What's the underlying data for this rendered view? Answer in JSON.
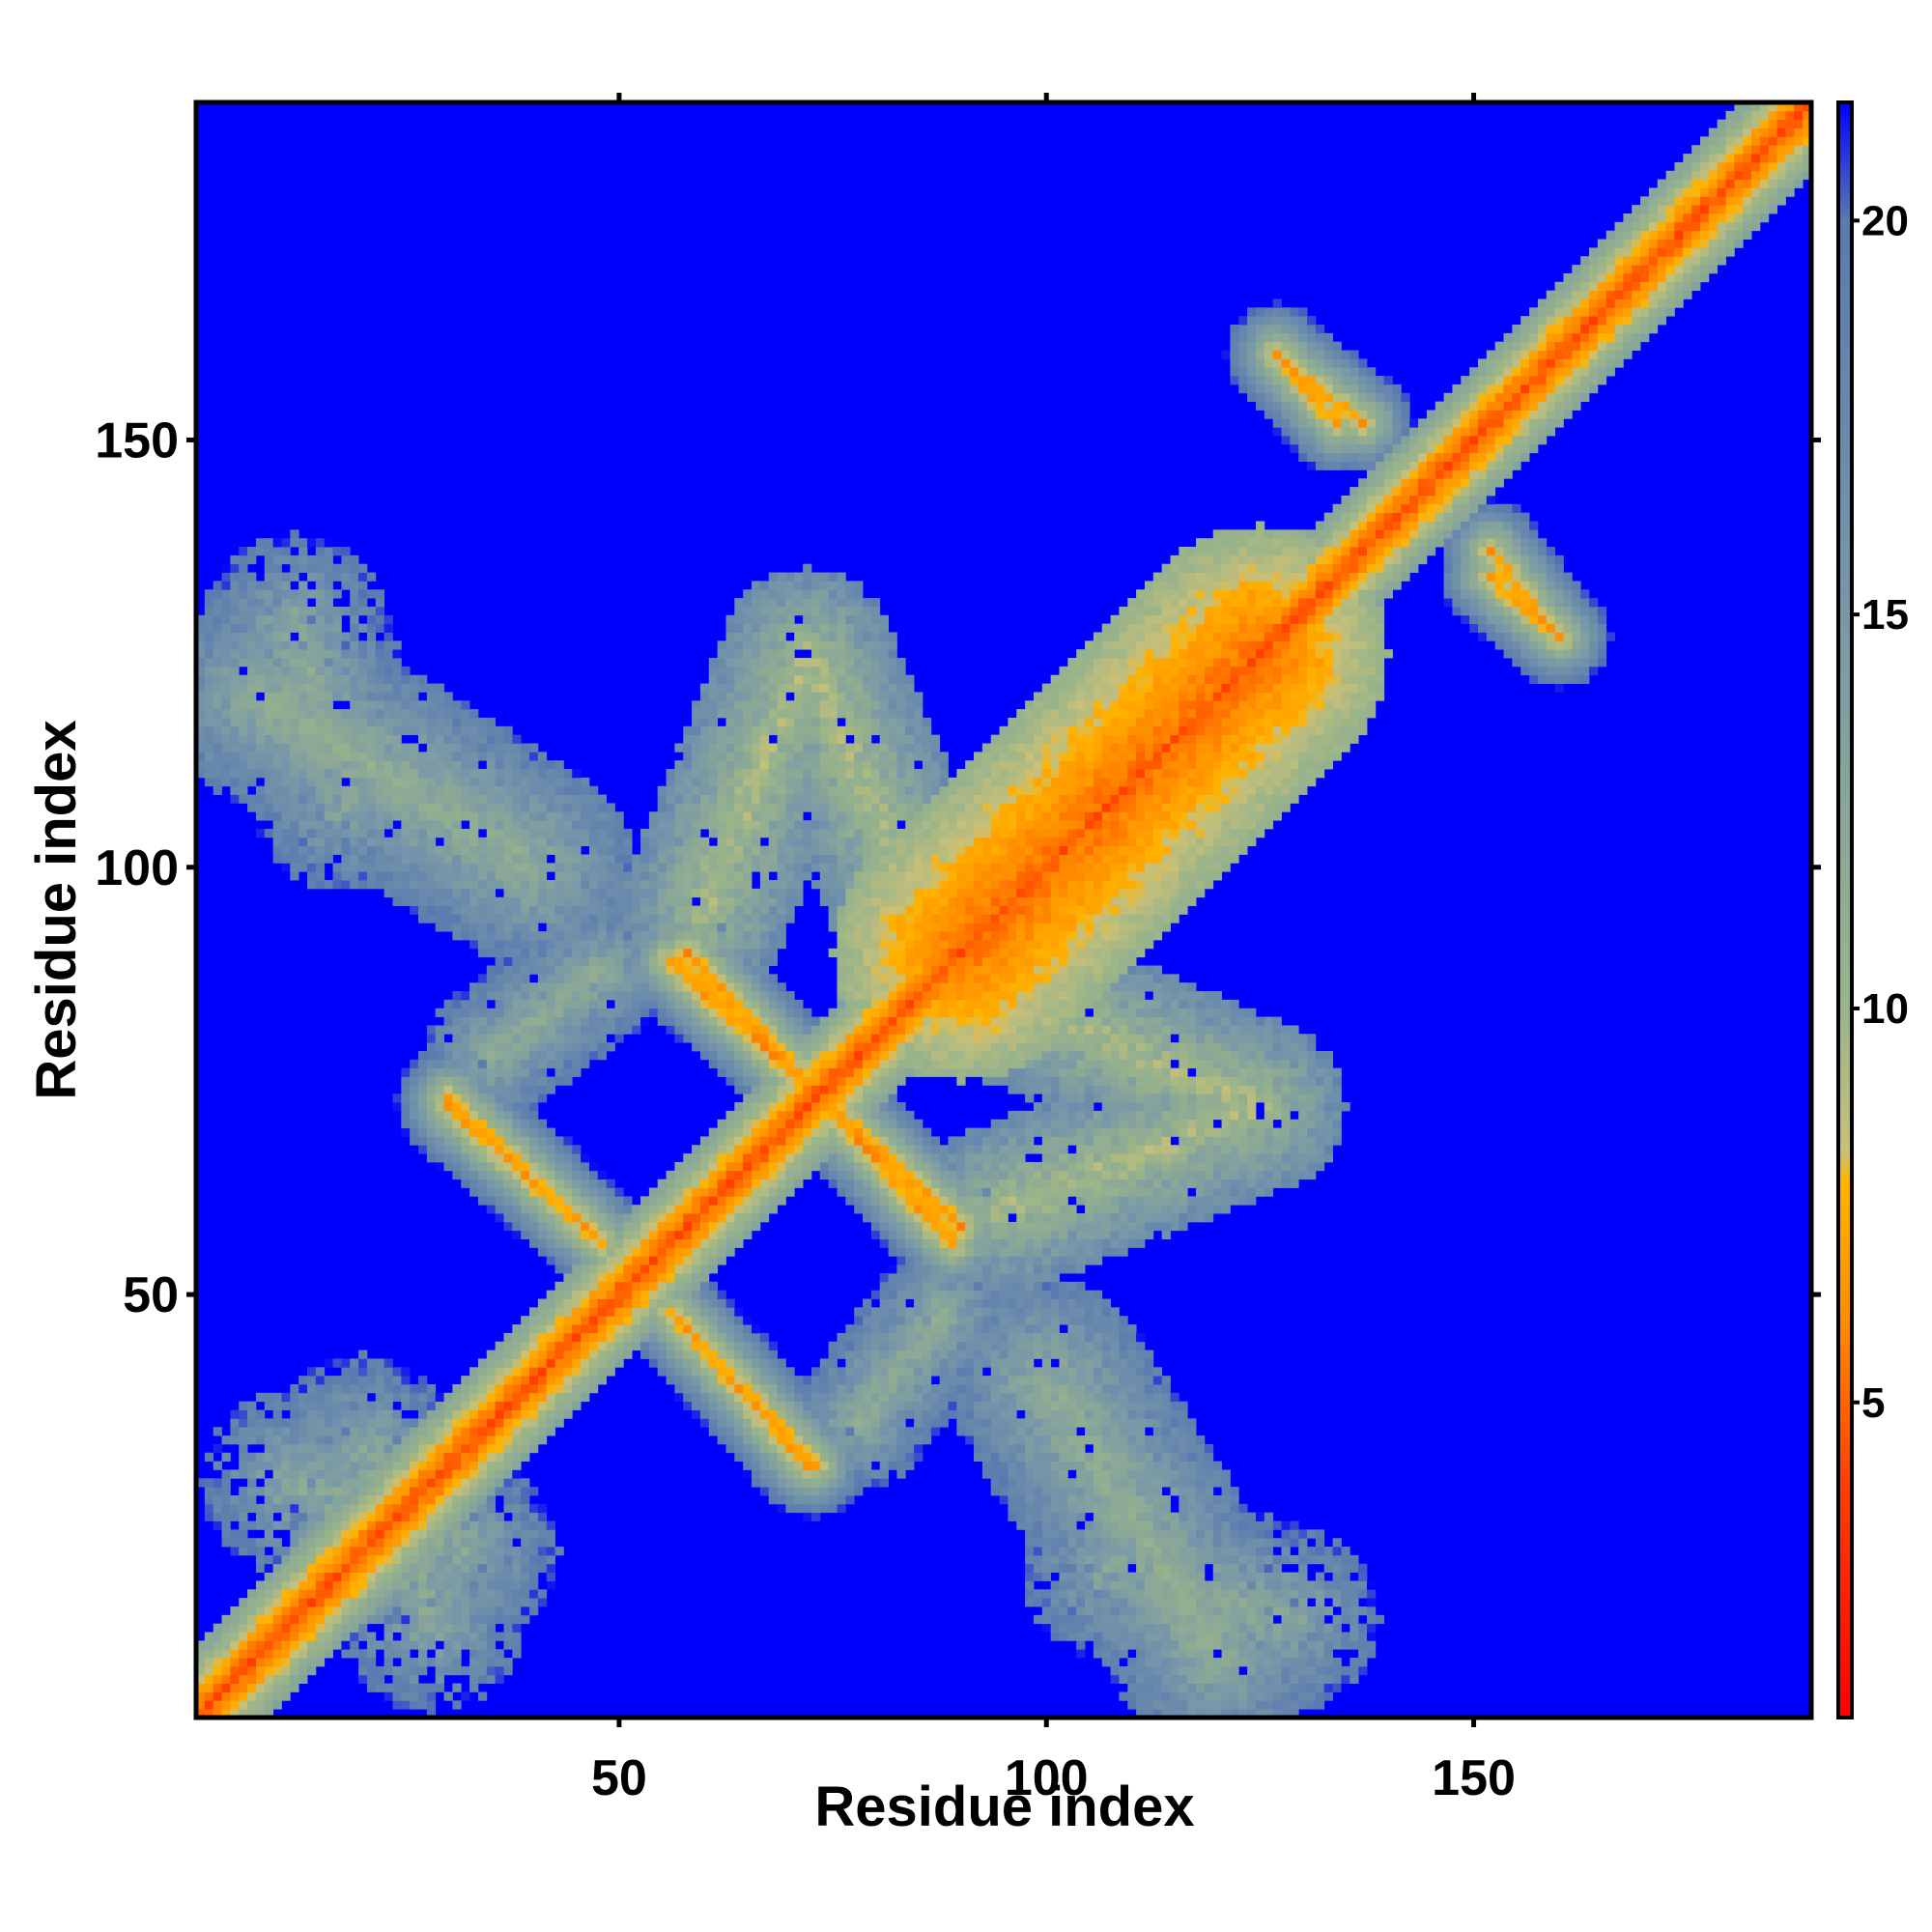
{
  "chart_data": {
    "type": "heatmap",
    "title": "",
    "xlabel": "Residue index",
    "ylabel": "Residue index",
    "n_residues": 189,
    "xlim": [
      1,
      189
    ],
    "ylim": [
      1,
      189
    ],
    "x_ticks": [
      50,
      100,
      150
    ],
    "y_ticks": [
      50,
      100,
      150
    ],
    "x_tick_labels": [
      "50",
      "100",
      "150"
    ],
    "y_tick_labels": [
      "50",
      "100",
      "150"
    ],
    "colorbar": {
      "range": [
        1,
        21.5
      ],
      "ticks": [
        5,
        10,
        15,
        20
      ],
      "tick_labels": [
        "5",
        "10",
        "15",
        "20"
      ],
      "placement": "right"
    },
    "cutoff_value": 21.5,
    "colorscale": [
      {
        "value": 1,
        "color": "#ff0000"
      },
      {
        "value": 4,
        "color": "#ff4000"
      },
      {
        "value": 6,
        "color": "#ff8c00"
      },
      {
        "value": 7.8,
        "color": "#ffb300"
      },
      {
        "value": 8.2,
        "color": "#c8c078"
      },
      {
        "value": 10,
        "color": "#9ab48a"
      },
      {
        "value": 15,
        "color": "#7898a8"
      },
      {
        "value": 20,
        "color": "#5a7ab0"
      },
      {
        "value": 21.5,
        "color": "#0000ff"
      }
    ],
    "features": [
      {
        "kind": "diagonal_band",
        "from": [
          1,
          1
        ],
        "to": [
          189,
          189
        ],
        "min_value": 3.8,
        "width_residues": 3
      },
      {
        "kind": "diagonal_band",
        "from": [
          90,
          90
        ],
        "to": [
          125,
          125
        ],
        "min_value": 4.5,
        "width_residues": 12
      },
      {
        "kind": "antiparallel_strand",
        "from": [
          30,
          73
        ],
        "to": [
          48,
          56
        ],
        "min_value": 6.0,
        "width_residues": 3
      },
      {
        "kind": "antiparallel_strand",
        "from": [
          56,
          89
        ],
        "to": [
          90,
          58
        ],
        "min_value": 5.5,
        "width_residues": 3
      },
      {
        "kind": "antiparallel_strand",
        "from": [
          57,
          47
        ],
        "to": [
          72,
          30
        ],
        "min_value": 5.8,
        "width_residues": 3
      },
      {
        "kind": "antiparallel_strand",
        "from": [
          129,
          158
        ],
        "to": [
          137,
          152
        ],
        "min_value": 5.8,
        "width_residues": 3
      },
      {
        "kind": "antiparallel_strand",
        "from": [
          152,
          134
        ],
        "to": [
          160,
          127
        ],
        "min_value": 5.8,
        "width_residues": 3
      },
      {
        "kind": "antiparallel_strand",
        "from": [
          123,
          133
        ],
        "to": [
          132,
          122
        ],
        "min_value": 6.0,
        "width_residues": 3
      },
      {
        "kind": "contact_arm",
        "from": [
          60,
          95
        ],
        "to": [
          72,
          125
        ],
        "min_value": 7.5,
        "width_residues": 7
      },
      {
        "kind": "contact_arm",
        "from": [
          72,
          125
        ],
        "to": [
          85,
          95
        ],
        "min_value": 7.5,
        "width_residues": 7
      },
      {
        "kind": "contact_arm",
        "from": [
          95,
          85
        ],
        "to": [
          125,
          72
        ],
        "min_value": 7.5,
        "width_residues": 7
      },
      {
        "kind": "contact_arm",
        "from": [
          125,
          72
        ],
        "to": [
          95,
          60
        ],
        "min_value": 7.5,
        "width_residues": 7
      },
      {
        "kind": "contact_arm",
        "from": [
          35,
          78
        ],
        "to": [
          48,
          88
        ],
        "min_value": 10.0,
        "width_residues": 5
      },
      {
        "kind": "contact_arm",
        "from": [
          78,
          35
        ],
        "to": [
          88,
          48
        ],
        "min_value": 10.0,
        "width_residues": 5
      },
      {
        "kind": "contact_patch",
        "from": [
          8,
          120
        ],
        "to": [
          40,
          100
        ],
        "min_value": 9.5,
        "width_residues": 9
      },
      {
        "kind": "contact_patch",
        "from": [
          100,
          40
        ],
        "to": [
          120,
          8
        ],
        "min_value": 9.5,
        "width_residues": 9
      },
      {
        "kind": "contact_patch",
        "from": [
          12,
          28
        ],
        "to": [
          32,
          20
        ],
        "min_value": 10.0,
        "width_residues": 8
      },
      {
        "kind": "contact_patch",
        "from": [
          108,
          18
        ],
        "to": [
          128,
          12
        ],
        "min_value": 10.0,
        "width_residues": 8
      }
    ]
  }
}
